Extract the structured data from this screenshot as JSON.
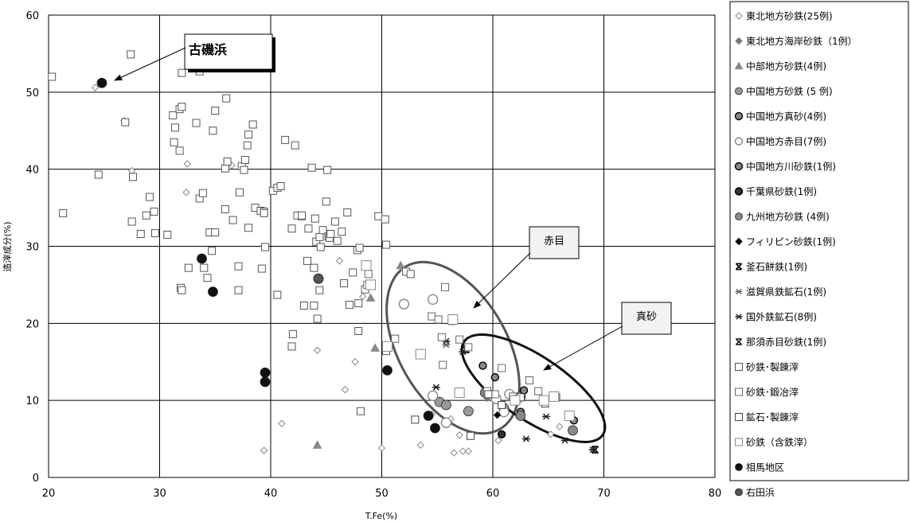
{
  "chart_data": {
    "type": "scatter",
    "title": "",
    "xlabel": "T.Fe(%)",
    "ylabel": "造滓成分(%)",
    "xlim": [
      20,
      80
    ],
    "ylim": [
      0,
      60
    ],
    "xticks": [
      "20",
      "30",
      "40",
      "50",
      "60",
      "70",
      "80"
    ],
    "yticks": [
      "0",
      "10",
      "20",
      "30",
      "40",
      "50",
      "60"
    ],
    "grid": "horizontal and vertical gridlines at every tick",
    "legend": "right",
    "annotations": [
      {
        "text": "古磯浜",
        "points_to": [
          24.8,
          51.2
        ]
      },
      {
        "text": "赤目",
        "points_to": [
          58.5,
          22.5
        ]
      },
      {
        "text": "真砂",
        "points_to": [
          64.5,
          14.0
        ]
      }
    ],
    "ellipses": [
      {
        "label": "赤目",
        "cx": 56.5,
        "cy": 15.8,
        "note": "gray ellipse enclosing 赤目 samples"
      },
      {
        "label": "真砂",
        "cx": 64.0,
        "cy": 10.5,
        "note": "black ellipse enclosing 真砂 samples"
      }
    ],
    "series": [
      {
        "name": "東北地方砂鉄(25例)",
        "marker": "diamond-open",
        "color": "#888888",
        "points": [
          [
            24.2,
            50.6
          ],
          [
            26.8,
            46.3
          ],
          [
            27.5,
            39.8
          ],
          [
            32.5,
            40.7
          ],
          [
            32.4,
            37.0
          ],
          [
            36.5,
            40.5
          ],
          [
            46.2,
            28.1
          ],
          [
            47.6,
            15.0
          ],
          [
            46.7,
            11.4
          ],
          [
            41.0,
            7.0
          ],
          [
            39.4,
            3.5
          ],
          [
            50.0,
            3.8
          ],
          [
            53.5,
            4.2
          ],
          [
            57.0,
            5.5
          ],
          [
            56.5,
            3.2
          ],
          [
            57.3,
            3.4
          ],
          [
            57.8,
            3.4
          ],
          [
            60.5,
            4.8
          ],
          [
            65.2,
            5.6
          ],
          [
            54.5,
            8.2
          ],
          [
            56.2,
            7.6
          ],
          [
            66.0,
            6.6
          ],
          [
            44.2,
            16.5
          ],
          [
            48.3,
            23.5
          ],
          [
            52.0,
            27.0
          ]
        ]
      },
      {
        "name": "東北地方海岸砂鉄（1例）",
        "marker": "diamond",
        "color": "#777777",
        "points": [
          [
            59.5,
            10.3
          ]
        ]
      },
      {
        "name": "中部地方砂鉄(4例)",
        "marker": "triangle",
        "color": "#888888",
        "points": [
          [
            51.7,
            27.5
          ],
          [
            49.0,
            23.3
          ],
          [
            49.4,
            16.8
          ],
          [
            44.2,
            4.2
          ]
        ]
      },
      {
        "name": "中国地方砂鉄 (5 例)",
        "marker": "circle",
        "color": "#999999",
        "points": [
          [
            55.2,
            9.8
          ],
          [
            55.8,
            9.4
          ],
          [
            57.8,
            8.6
          ],
          [
            61.0,
            9.0
          ],
          [
            62.5,
            10.5
          ]
        ]
      },
      {
        "name": "中国地方真砂(4例)",
        "marker": "circle-dot",
        "color": "#888888",
        "points": [
          [
            59.1,
            14.5
          ],
          [
            60.2,
            13.0
          ],
          [
            62.8,
            11.3
          ],
          [
            67.3,
            7.4
          ]
        ]
      },
      {
        "name": "中国地方赤目(7例)",
        "marker": "circle-open",
        "color": "#888888",
        "points": [
          [
            52.0,
            22.5
          ],
          [
            54.6,
            23.1
          ],
          [
            54.6,
            10.6
          ],
          [
            55.8,
            7.1
          ],
          [
            61.5,
            10.8
          ],
          [
            61.0,
            8.5
          ],
          [
            60.3,
            10.2
          ]
        ]
      },
      {
        "name": "中国地方川砂鉄(1例)",
        "marker": "circle-dot",
        "color": "#888888",
        "points": [
          [
            62.5,
            8.5
          ]
        ]
      },
      {
        "name": "千葉県砂鉄(1例)",
        "marker": "circle-dot",
        "color": "#333333",
        "points": [
          [
            60.8,
            5.6
          ]
        ]
      },
      {
        "name": "九州地方砂鉄 (4例)",
        "marker": "circle",
        "color": "#888888",
        "points": [
          [
            44.3,
            25.8
          ],
          [
            59.3,
            11.0
          ],
          [
            67.2,
            6.1
          ],
          [
            62.5,
            8.0
          ]
        ]
      },
      {
        "name": "フィリピン砂鉄(1例)",
        "marker": "diamond",
        "color": "#000000",
        "points": [
          [
            60.4,
            8.1
          ]
        ]
      },
      {
        "name": "釜石餅鉄(1例)",
        "marker": "hourglass",
        "color": "#000000",
        "points": [
          [
            69.2,
            3.6
          ]
        ]
      },
      {
        "name": "滋賀県鉄鉱石(1例)",
        "marker": "asterisk",
        "color": "#666666",
        "points": [
          [
            55.8,
            17.2
          ]
        ]
      },
      {
        "name": "国外鉄鉱石(8例)",
        "marker": "asterisk",
        "color": "#222222",
        "points": [
          [
            54.9,
            11.7
          ],
          [
            55.8,
            17.7
          ],
          [
            57.3,
            16.3
          ],
          [
            63.0,
            5.0
          ],
          [
            64.8,
            7.9
          ],
          [
            66.5,
            4.8
          ],
          [
            69.0,
            3.6
          ],
          [
            57.6,
            16.8
          ]
        ]
      },
      {
        "name": "那須赤目砂鉄(1例)",
        "marker": "hourglass",
        "color": "#222222",
        "points": [
          [
            57.6,
            16.6
          ]
        ]
      },
      {
        "name": "砂鉄･製錬滓",
        "marker": "square-open",
        "color": "#555555",
        "points": [
          [
            20.3,
            52.0
          ],
          [
            21.3,
            34.3
          ],
          [
            24.5,
            39.3
          ],
          [
            26.9,
            46.1
          ],
          [
            27.4,
            54.9
          ],
          [
            27.6,
            39.0
          ],
          [
            27.5,
            33.2
          ],
          [
            28.3,
            31.6
          ],
          [
            28.8,
            34.0
          ],
          [
            29.1,
            36.4
          ],
          [
            29.5,
            34.5
          ],
          [
            29.6,
            31.7
          ],
          [
            30.7,
            31.5
          ],
          [
            31.2,
            47.0
          ],
          [
            31.4,
            45.4
          ],
          [
            31.3,
            43.5
          ],
          [
            31.8,
            42.4
          ],
          [
            31.8,
            47.8
          ],
          [
            32.0,
            48.1
          ],
          [
            32.0,
            52.5
          ],
          [
            31.9,
            24.6
          ],
          [
            32.0,
            24.3
          ],
          [
            32.6,
            27.2
          ],
          [
            33.3,
            46.0
          ],
          [
            33.6,
            52.7
          ],
          [
            33.6,
            36.2
          ],
          [
            33.9,
            36.9
          ],
          [
            34.0,
            27.2
          ],
          [
            34.3,
            25.9
          ],
          [
            34.5,
            31.8
          ],
          [
            34.7,
            29.4
          ],
          [
            34.8,
            45.0
          ],
          [
            35.0,
            47.6
          ],
          [
            35.0,
            31.8
          ],
          [
            35.9,
            40.1
          ],
          [
            35.9,
            34.8
          ],
          [
            36.0,
            49.2
          ],
          [
            36.1,
            41.0
          ],
          [
            36.6,
            33.4
          ],
          [
            37.1,
            24.3
          ],
          [
            37.1,
            27.4
          ],
          [
            37.2,
            37.0
          ],
          [
            37.4,
            40.4
          ],
          [
            37.6,
            39.9
          ],
          [
            37.7,
            41.2
          ],
          [
            37.9,
            43.1
          ],
          [
            38.0,
            32.4
          ],
          [
            38.0,
            44.5
          ],
          [
            38.4,
            45.8
          ],
          [
            38.6,
            35.0
          ],
          [
            39.1,
            34.6
          ],
          [
            39.2,
            27.1
          ],
          [
            39.4,
            34.5
          ],
          [
            39.4,
            34.3
          ],
          [
            39.5,
            29.9
          ],
          [
            40.2,
            37.2
          ],
          [
            40.6,
            37.6
          ],
          [
            40.6,
            23.7
          ],
          [
            40.9,
            37.8
          ],
          [
            41.3,
            43.8
          ],
          [
            41.9,
            17.0
          ],
          [
            41.9,
            32.3
          ],
          [
            42.0,
            18.6
          ],
          [
            42.2,
            43.1
          ],
          [
            42.4,
            34.0
          ],
          [
            42.8,
            33.9
          ],
          [
            42.8,
            34.0
          ],
          [
            43.0,
            22.3
          ],
          [
            43.3,
            28.1
          ],
          [
            43.4,
            32.3
          ],
          [
            43.7,
            40.2
          ],
          [
            43.9,
            27.2
          ],
          [
            43.9,
            22.3
          ],
          [
            44.1,
            30.6
          ],
          [
            44.0,
            33.6
          ],
          [
            44.2,
            20.6
          ],
          [
            44.4,
            24.3
          ],
          [
            44.4,
            31.2
          ],
          [
            44.5,
            29.9
          ],
          [
            44.7,
            32.1
          ],
          [
            45.0,
            35.8
          ],
          [
            45.1,
            39.9
          ],
          [
            45.2,
            31.3
          ],
          [
            45.3,
            31.1
          ],
          [
            45.4,
            31.6
          ],
          [
            45.8,
            33.2
          ],
          [
            46.0,
            30.7
          ],
          [
            46.4,
            31.9
          ],
          [
            46.6,
            25.2
          ],
          [
            46.9,
            34.4
          ],
          [
            47.1,
            22.4
          ],
          [
            47.4,
            26.6
          ],
          [
            47.8,
            29.5
          ],
          [
            47.9,
            19.0
          ],
          [
            47.9,
            22.6
          ],
          [
            48.0,
            29.8
          ],
          [
            48.1,
            8.6
          ],
          [
            48.5,
            24.4
          ],
          [
            49.7,
            33.9
          ],
          [
            50.3,
            33.5
          ],
          [
            50.4,
            30.2
          ],
          [
            50.4,
            16.4
          ],
          [
            52.2,
            26.7
          ],
          [
            52.6,
            26.4
          ]
        ]
      },
      {
        "name": "砂鉄･鍛冶滓",
        "marker": "square-open",
        "color": "#666666",
        "points": [
          [
            48.7,
            25.0
          ],
          [
            48.8,
            26.4
          ],
          [
            51.2,
            18.0
          ],
          [
            53.4,
            16.1
          ],
          [
            54.5,
            20.9
          ],
          [
            55.1,
            20.5
          ],
          [
            55.5,
            14.6
          ],
          [
            55.4,
            18.2
          ],
          [
            55.7,
            24.7
          ],
          [
            56.3,
            20.3
          ],
          [
            56.4,
            20.6
          ],
          [
            57.0,
            17.9
          ],
          [
            57.8,
            16.9
          ],
          [
            59.5,
            11.2
          ],
          [
            60.2,
            10.8
          ],
          [
            60.8,
            14.2
          ],
          [
            61.8,
            10.5
          ],
          [
            62.2,
            10.2
          ],
          [
            63.3,
            12.6
          ],
          [
            64.1,
            11.2
          ]
        ]
      },
      {
        "name": "鉱石･製錬滓",
        "marker": "square-open",
        "color": "#444444",
        "points": [
          [
            53.0,
            7.5
          ],
          [
            58.0,
            5.4
          ],
          [
            59.6,
            10.8
          ],
          [
            60.8,
            9.4
          ],
          [
            62.5,
            10.4
          ],
          [
            64.7,
            9.6
          ],
          [
            65.7,
            10.4
          ],
          [
            66.9,
            7.9
          ]
        ]
      },
      {
        "name": "砂鉄（含鉄滓）",
        "marker": "square-open",
        "color": "#888888",
        "points": [
          [
            48.6,
            27.5
          ],
          [
            49.0,
            25.0
          ],
          [
            50.5,
            17.0
          ],
          [
            53.5,
            16.0
          ],
          [
            56.4,
            20.5
          ],
          [
            57.0,
            11.0
          ],
          [
            62.0,
            10.0
          ],
          [
            64.6,
            10.0
          ],
          [
            65.5,
            10.5
          ],
          [
            66.9,
            8.0
          ]
        ]
      },
      {
        "name": "相馬地区",
        "marker": "circle",
        "color": "#111111",
        "points": [
          [
            24.8,
            51.2
          ],
          [
            33.8,
            28.4
          ],
          [
            34.8,
            24.1
          ],
          [
            39.5,
            13.6
          ],
          [
            39.5,
            12.4
          ],
          [
            50.5,
            13.9
          ],
          [
            54.2,
            8.0
          ],
          [
            54.8,
            6.4
          ]
        ]
      },
      {
        "name": "右田浜",
        "marker": "circle",
        "color": "#555555",
        "points": [
          [
            44.3,
            25.8
          ]
        ]
      }
    ]
  }
}
